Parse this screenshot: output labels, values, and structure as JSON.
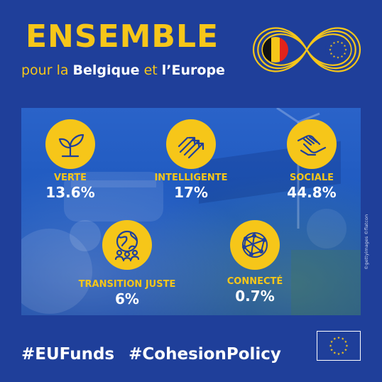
{
  "header": {
    "title": "ENSEMBLE",
    "subtitle_part1": "pour la",
    "subtitle_part2": "Belgique",
    "subtitle_part3": "et",
    "subtitle_part4": "l’Europe"
  },
  "categories": [
    {
      "label": "VERTE",
      "value": "13.6%",
      "icon": "leaf-sprout-icon"
    },
    {
      "label": "INTELLIGENTE",
      "value": "17%",
      "icon": "upward-arrows-icon"
    },
    {
      "label": "SOCIALE",
      "value": "44.8%",
      "icon": "hands-icon"
    },
    {
      "label": "TRANSITION JUSTE",
      "value": "6%",
      "icon": "people-globe-icon"
    },
    {
      "label": "CONNECTÉ",
      "value": "0.7%",
      "icon": "network-globe-icon"
    }
  ],
  "photo_credit": "©gettyimages ©flatcon",
  "hashtags": [
    "#EUFunds",
    "#CohesionPolicy"
  ],
  "colors": {
    "background": "#1f3f9a",
    "accent": "#f6c619",
    "belgium_black": "#111111",
    "belgium_yellow": "#f6c619",
    "belgium_red": "#e2231a"
  }
}
